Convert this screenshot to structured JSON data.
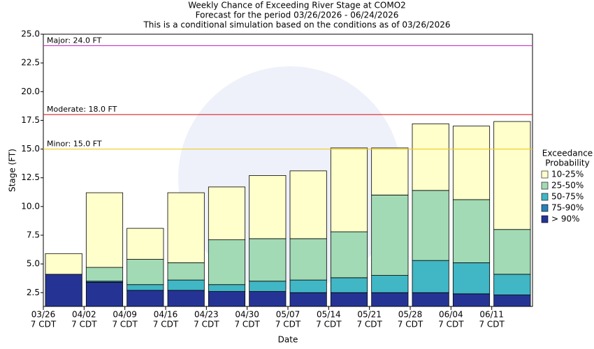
{
  "chart_data": {
    "type": "bar",
    "title": [
      "Weekly Chance of Exceeding River Stage at COMO2",
      "Forecast for the period 03/26/2026 - 06/24/2026",
      "This is a conditional simulation based on the conditions as of 03/26/2026"
    ],
    "x_label": "Date",
    "y_label": "Stage (FT)",
    "categories": [
      "03/26",
      "04/02",
      "04/09",
      "04/16",
      "04/23",
      "04/30",
      "05/07",
      "05/14",
      "05/21",
      "05/28",
      "06/04",
      "06/11"
    ],
    "tick_sublabel": "7 CDT",
    "ylim": [
      1.3,
      25
    ],
    "yticks": [
      2.5,
      {
        "value": 5,
        "label": "5.0"
      },
      7.5,
      {
        "value": 10,
        "label": "10.0"
      },
      12.5,
      {
        "value": 15,
        "label": "15.0"
      },
      17.5,
      {
        "value": 20,
        "label": "20.0"
      },
      22.5,
      {
        "value": 25,
        "label": "25.0"
      }
    ],
    "legend_title": [
      "Exceedance",
      "Probability"
    ],
    "series": [
      {
        "name": "> 90%",
        "color": "#253494",
        "values": [
          4.1,
          3.4,
          2.7,
          2.7,
          2.6,
          2.6,
          2.5,
          2.5,
          2.5,
          2.5,
          2.4,
          2.3
        ]
      },
      {
        "name": "75-90%",
        "color": "#2c7fb8",
        "values": [
          4.1,
          3.5,
          2.7,
          2.7,
          2.6,
          2.6,
          2.5,
          2.5,
          2.5,
          2.5,
          2.4,
          2.3
        ]
      },
      {
        "name": "50-75%",
        "color": "#41b6c4",
        "values": [
          4.1,
          3.5,
          3.2,
          3.6,
          3.2,
          3.5,
          3.6,
          3.8,
          4.0,
          5.3,
          5.1,
          4.1
        ]
      },
      {
        "name": "25-50%",
        "color": "#a1dab4",
        "values": [
          4.1,
          4.7,
          5.4,
          5.1,
          7.1,
          7.2,
          7.2,
          7.8,
          11.0,
          11.4,
          10.6,
          8.0
        ]
      },
      {
        "name": "10-25%",
        "color": "#ffffcc",
        "values": [
          5.9,
          11.2,
          8.1,
          11.2,
          11.7,
          12.7,
          13.1,
          15.1,
          15.1,
          17.2,
          17.0,
          17.4
        ]
      }
    ],
    "thresholds": [
      {
        "label": "Major: 24.0 FT",
        "value": 24.0,
        "color": "#cc33cc"
      },
      {
        "label": "Moderate: 18.0 FT",
        "value": 18.0,
        "color": "#dd2222"
      },
      {
        "label": "Minor: 15.0 FT",
        "value": 15.0,
        "color": "#eecc22"
      }
    ]
  }
}
